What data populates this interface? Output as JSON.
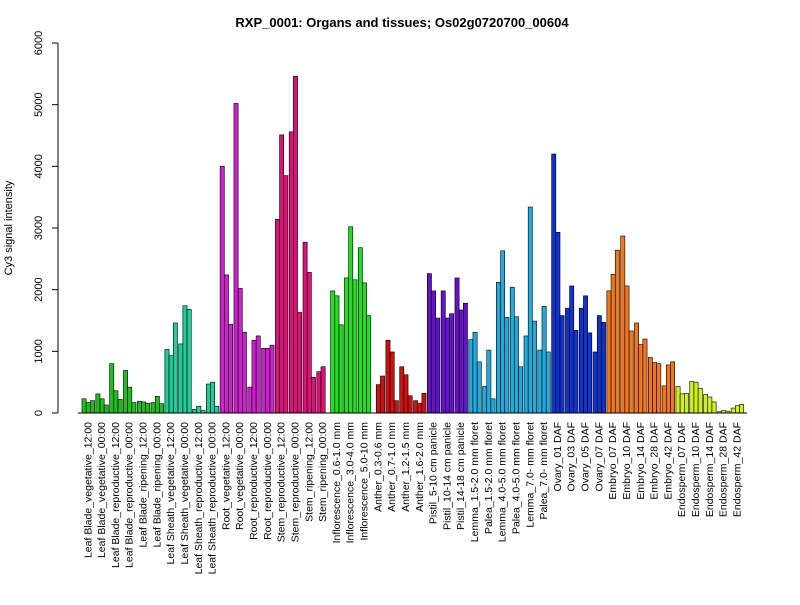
{
  "chart_data": {
    "type": "bar",
    "title": "RXP_0001: Organs and tissues; Os02g0720700_00604",
    "xlabel": "",
    "ylabel": "Cy3 signal intensity",
    "ylim": [
      0,
      6000
    ],
    "yticks": [
      0,
      1000,
      2000,
      3000,
      4000,
      5000,
      6000
    ],
    "grid": false,
    "legend": "none",
    "categories": [
      {
        "label": "Leaf Blade_vegetative_12:00",
        "color": "#22bb22",
        "values": [
          230,
          170,
          200
        ]
      },
      {
        "label": "Leaf Blade_vegetative_00:00",
        "color": "#22bb22",
        "values": [
          310,
          230,
          130
        ]
      },
      {
        "label": "Leaf Blade_reproductive_12:00",
        "color": "#22bb22",
        "values": [
          800,
          360,
          220
        ]
      },
      {
        "label": "Leaf Blade_reproductive_00:00",
        "color": "#22bb22",
        "values": [
          690,
          420,
          170
        ]
      },
      {
        "label": "Leaf Blade_ripening_12:00",
        "color": "#22bb22",
        "values": [
          190,
          180,
          160
        ]
      },
      {
        "label": "Leaf Blade_ripening_00:00",
        "color": "#22bb22",
        "values": [
          170,
          270,
          150
        ]
      },
      {
        "label": "Leaf Sheath_vegetative_12:00",
        "color": "#22cc99",
        "values": [
          1030,
          930,
          1460
        ]
      },
      {
        "label": "Leaf Sheath_vegetative_00:00",
        "color": "#22cc99",
        "values": [
          1120,
          1740,
          1680
        ]
      },
      {
        "label": "Leaf Sheath_reproductive_12:00",
        "color": "#22cc99",
        "values": [
          60,
          110,
          40
        ]
      },
      {
        "label": "Leaf Sheath_reproductive_00:00",
        "color": "#22cc99",
        "values": [
          470,
          500,
          110
        ]
      },
      {
        "label": "Root_vegetative_12:00",
        "color": "#cc22cc",
        "values": [
          4000,
          2240,
          1440
        ]
      },
      {
        "label": "Root_vegetative_00:00",
        "color": "#cc22cc",
        "values": [
          5020,
          2020,
          1310
        ]
      },
      {
        "label": "Root_reproductive_12:00",
        "color": "#cc22cc",
        "values": [
          420,
          1180,
          1250
        ]
      },
      {
        "label": "Root_reproductive_00:00",
        "color": "#cc22cc",
        "values": [
          1050,
          1050,
          1100
        ]
      },
      {
        "label": "Stem_reproductive_12:00",
        "color": "#dd1177",
        "values": [
          3140,
          4510,
          3850
        ]
      },
      {
        "label": "Stem_reproductive_00:00",
        "color": "#dd1177",
        "values": [
          4560,
          5460,
          1630
        ]
      },
      {
        "label": "Stem_ripening_12:00",
        "color": "#dd1177",
        "values": [
          2770,
          2280,
          580
        ]
      },
      {
        "label": "Stem_ripening_00:00",
        "color": "#dd1177",
        "values": [
          670,
          750,
          0
        ]
      },
      {
        "label": "Inflorescence_0.6-1.0 mm",
        "color": "#22dd22",
        "values": [
          1980,
          1900,
          1430
        ]
      },
      {
        "label": "Inflorescence_3.0-4.0 mm",
        "color": "#22dd22",
        "values": [
          2190,
          3020,
          2160
        ]
      },
      {
        "label": "Inflorescence_5.0-10 mm",
        "color": "#22dd22",
        "values": [
          2680,
          2110,
          1580
        ]
      },
      {
        "label": "Anther_0.3-0.6 mm",
        "color": "#cc1111",
        "values": [
          0,
          460,
          600
        ]
      },
      {
        "label": "Anther_0.7-1.0 mm",
        "color": "#cc1111",
        "values": [
          1180,
          990,
          200
        ]
      },
      {
        "label": "Anther_1.2-1.5 mm",
        "color": "#cc1111",
        "values": [
          750,
          620,
          280
        ]
      },
      {
        "label": "Anther_1.6-2.0 mm",
        "color": "#cc1111",
        "values": [
          200,
          160,
          320
        ]
      },
      {
        "label": "Pistil_5-10 cm panicle",
        "color": "#6611cc",
        "values": [
          2260,
          1980,
          1540
        ]
      },
      {
        "label": "Pistil_10-14 cm panicle",
        "color": "#6611cc",
        "values": [
          1980,
          1540,
          1610
        ]
      },
      {
        "label": "Pistil_14-18 cm panicle",
        "color": "#6611cc",
        "values": [
          2190,
          1670,
          1780
        ]
      },
      {
        "label": "Lemma_1.5-2.0 mm floret",
        "color": "#22aadd",
        "values": [
          1190,
          1310,
          830
        ]
      },
      {
        "label": "Palea_1.5-2.0 mm floret",
        "color": "#22aadd",
        "values": [
          430,
          1020,
          230
        ]
      },
      {
        "label": "Lemma_4.0-5.0 mm floret",
        "color": "#22aadd",
        "values": [
          2120,
          2630,
          1550
        ]
      },
      {
        "label": "Palea_4.0-5.0 mm floret",
        "color": "#22aadd",
        "values": [
          2040,
          1560,
          750
        ]
      },
      {
        "label": "Lemma_7.0- mm floret",
        "color": "#22aadd",
        "values": [
          1250,
          3340,
          1490
        ]
      },
      {
        "label": "Palea_7.0- mm floret",
        "color": "#22aadd",
        "values": [
          1020,
          1730,
          990
        ]
      },
      {
        "label": "Ovary_01 DAF",
        "color": "#1133cc",
        "values": [
          4200,
          2930,
          1580
        ]
      },
      {
        "label": "Ovary_03 DAF",
        "color": "#1133cc",
        "values": [
          1700,
          2060,
          1340
        ]
      },
      {
        "label": "Ovary_05 DAF",
        "color": "#1133cc",
        "values": [
          1700,
          1900,
          1300
        ]
      },
      {
        "label": "Ovary_07 DAF",
        "color": "#1133cc",
        "values": [
          990,
          1580,
          1470
        ]
      },
      {
        "label": "Embryo_07 DAF",
        "color": "#ee7722",
        "values": [
          1980,
          2250,
          2640
        ]
      },
      {
        "label": "Embryo_10 DAF",
        "color": "#ee7722",
        "values": [
          2870,
          2060,
          1330
        ]
      },
      {
        "label": "Embryo_14 DAF",
        "color": "#ee7722",
        "values": [
          1460,
          1110,
          1200
        ]
      },
      {
        "label": "Embryo_28 DAF",
        "color": "#ee7722",
        "values": [
          900,
          820,
          800
        ]
      },
      {
        "label": "Embryo_42 DAF",
        "color": "#ee7722",
        "values": [
          440,
          780,
          830
        ]
      },
      {
        "label": "Endosperm_07 DAF",
        "color": "#ccee22",
        "values": [
          430,
          310,
          320
        ]
      },
      {
        "label": "Endosperm_10 DAF",
        "color": "#ccee22",
        "values": [
          510,
          500,
          400
        ]
      },
      {
        "label": "Endosperm_14 DAF",
        "color": "#ccee22",
        "values": [
          300,
          260,
          180
        ]
      },
      {
        "label": "Endosperm_28 DAF",
        "color": "#ccee22",
        "values": [
          20,
          40,
          30
        ]
      },
      {
        "label": "Endosperm_42 DAF",
        "color": "#ccee22",
        "values": [
          80,
          120,
          140
        ]
      }
    ]
  }
}
